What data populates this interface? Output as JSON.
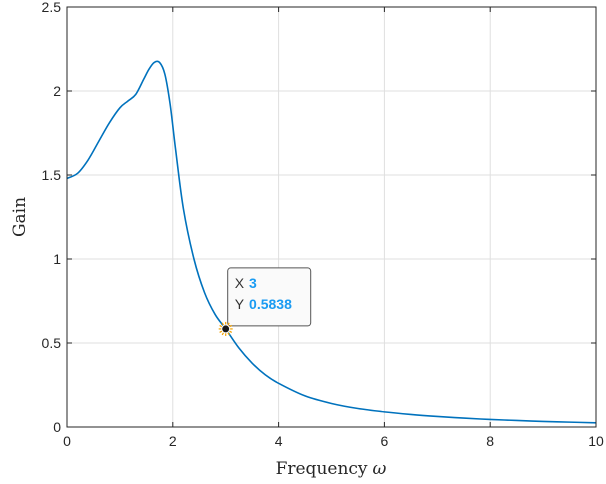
{
  "chart_data": {
    "type": "line",
    "title": "",
    "xlabel": "Frequency",
    "xlabel_symbol": "ω",
    "ylabel": "Gain",
    "xlim": [
      0,
      10
    ],
    "ylim": [
      0,
      2.5
    ],
    "grid": true,
    "x_ticks": [
      "0",
      "2",
      "4",
      "6",
      "8",
      "10"
    ],
    "y_ticks": [
      "0",
      "0.5",
      "1",
      "1.5",
      "2",
      "2.5"
    ],
    "line_color": "#0072bd",
    "series": [
      {
        "x": [
          0,
          0.2,
          0.4,
          0.6,
          0.8,
          1.0,
          1.15,
          1.3,
          1.45,
          1.55,
          1.65,
          1.75,
          1.85,
          1.95,
          2.05,
          2.2,
          2.4,
          2.6,
          2.8,
          3.0,
          3.25,
          3.5,
          3.75,
          4.0,
          4.5,
          5.0,
          5.5,
          6.0,
          6.5,
          7.0,
          7.5,
          8.0,
          8.5,
          9.0,
          9.5,
          10.0
        ],
        "y": [
          1.48,
          1.51,
          1.59,
          1.7,
          1.81,
          1.9,
          1.94,
          1.98,
          2.07,
          2.13,
          2.17,
          2.17,
          2.1,
          1.92,
          1.66,
          1.3,
          1.0,
          0.8,
          0.67,
          0.5838,
          0.47,
          0.38,
          0.31,
          0.26,
          0.185,
          0.14,
          0.11,
          0.09,
          0.075,
          0.063,
          0.053,
          0.045,
          0.039,
          0.033,
          0.029,
          0.025
        ]
      }
    ],
    "datatip": {
      "x_label": "X",
      "x_value": "3",
      "y_label": "Y",
      "y_value": "0.5838",
      "x": 3,
      "y": 0.5838
    }
  }
}
